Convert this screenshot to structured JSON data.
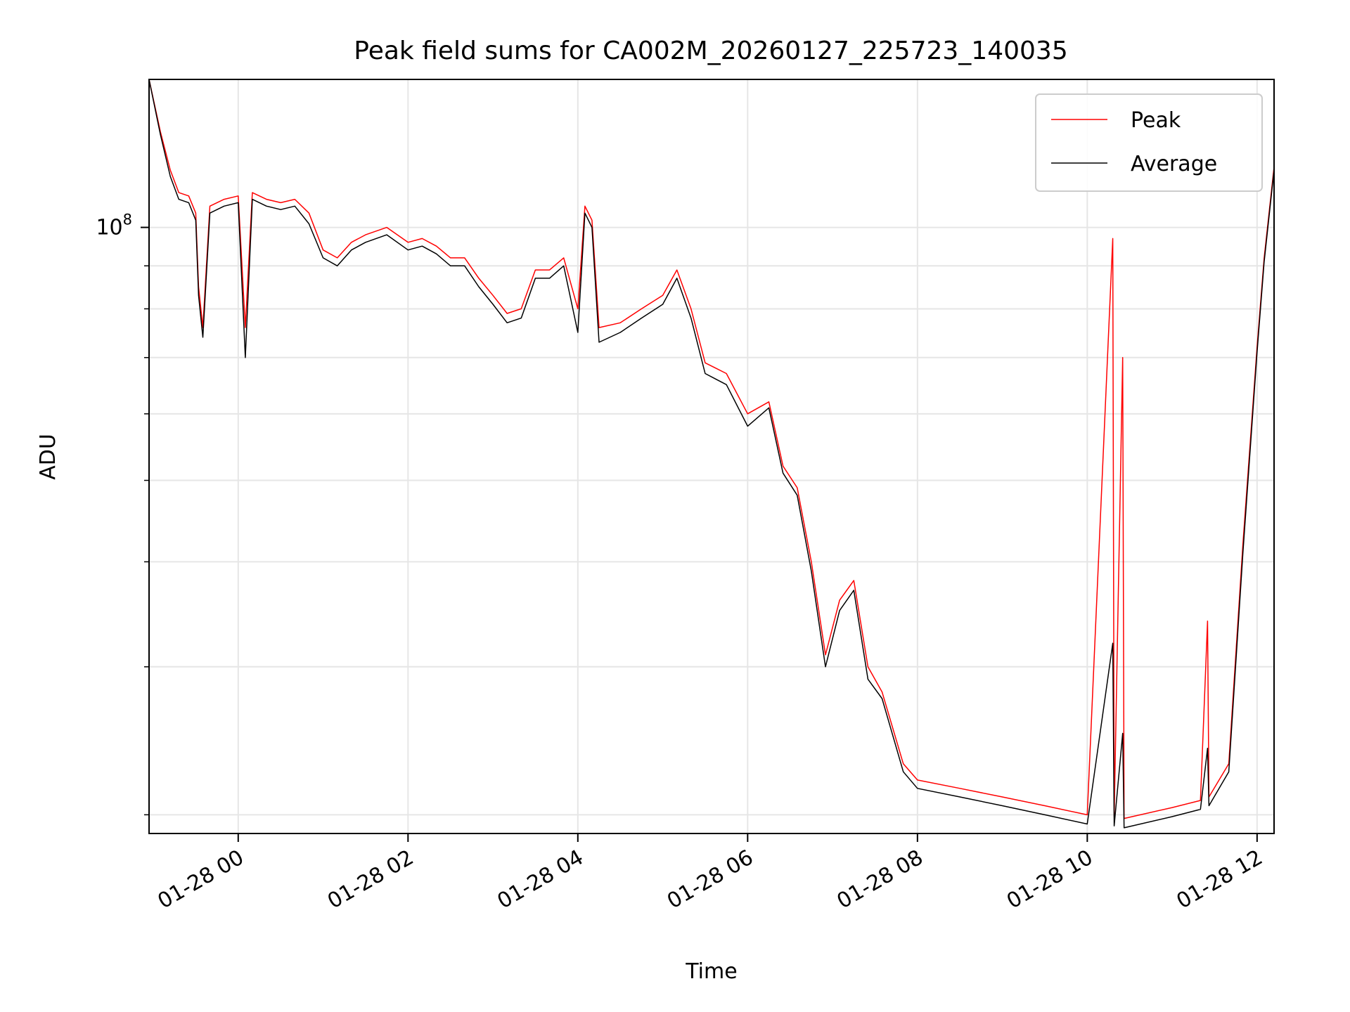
{
  "chart_data": {
    "type": "line",
    "title": "Peak field sums for CA002M_20260127_225723_140035",
    "xlabel": "Time",
    "ylabel": "ADU",
    "x_axis": {
      "type": "time",
      "range": [
        "2026-01-27 22:57",
        "2026-01-28 12:12"
      ],
      "ticks": [
        {
          "t": "2026-01-28 00:00",
          "label": "01-28 00"
        },
        {
          "t": "2026-01-28 02:00",
          "label": "01-28 02"
        },
        {
          "t": "2026-01-28 04:00",
          "label": "01-28 04"
        },
        {
          "t": "2026-01-28 06:00",
          "label": "01-28 06"
        },
        {
          "t": "2026-01-28 08:00",
          "label": "01-28 08"
        },
        {
          "t": "2026-01-28 10:00",
          "label": "01-28 10"
        },
        {
          "t": "2026-01-28 12:00",
          "label": "01-28 12"
        }
      ]
    },
    "y_axis": {
      "scale": "log",
      "range": [
        19000000,
        150000000
      ],
      "major_ticks": [
        {
          "value": 100000000,
          "label_base": "10",
          "label_exp": "8"
        }
      ],
      "minor_ticks": [
        20000000,
        30000000,
        40000000,
        50000000,
        60000000,
        70000000,
        80000000,
        90000000
      ]
    },
    "grid": true,
    "legend": {
      "placement": "top-right"
    },
    "series": [
      {
        "name": "Peak",
        "color": "#ff0000",
        "points": [
          [
            "2026-01-27 22:57",
            150000000
          ],
          [
            "2026-01-27 23:05",
            130000000
          ],
          [
            "2026-01-27 23:12",
            117000000
          ],
          [
            "2026-01-27 23:18",
            110000000
          ],
          [
            "2026-01-27 23:25",
            109000000
          ],
          [
            "2026-01-27 23:30",
            104000000
          ],
          [
            "2026-01-27 23:32",
            85000000
          ],
          [
            "2026-01-27 23:35",
            76000000
          ],
          [
            "2026-01-27 23:40",
            106000000
          ],
          [
            "2026-01-27 23:50",
            108000000
          ],
          [
            "2026-01-28 00:00",
            109000000
          ],
          [
            "2026-01-28 00:05",
            76000000
          ],
          [
            "2026-01-28 00:10",
            110000000
          ],
          [
            "2026-01-28 00:20",
            108000000
          ],
          [
            "2026-01-28 00:30",
            107000000
          ],
          [
            "2026-01-28 00:40",
            108000000
          ],
          [
            "2026-01-28 00:50",
            104000000
          ],
          [
            "2026-01-28 01:00",
            94000000
          ],
          [
            "2026-01-28 01:10",
            92000000
          ],
          [
            "2026-01-28 01:20",
            96000000
          ],
          [
            "2026-01-28 01:30",
            98000000
          ],
          [
            "2026-01-28 01:45",
            100000000
          ],
          [
            "2026-01-28 02:00",
            96000000
          ],
          [
            "2026-01-28 02:10",
            97000000
          ],
          [
            "2026-01-28 02:20",
            95000000
          ],
          [
            "2026-01-28 02:30",
            92000000
          ],
          [
            "2026-01-28 02:40",
            92000000
          ],
          [
            "2026-01-28 02:50",
            87000000
          ],
          [
            "2026-01-28 03:00",
            83000000
          ],
          [
            "2026-01-28 03:10",
            79000000
          ],
          [
            "2026-01-28 03:20",
            80000000
          ],
          [
            "2026-01-28 03:30",
            89000000
          ],
          [
            "2026-01-28 03:40",
            89000000
          ],
          [
            "2026-01-28 03:50",
            92000000
          ],
          [
            "2026-01-28 04:00",
            80000000
          ],
          [
            "2026-01-28 04:05",
            106000000
          ],
          [
            "2026-01-28 04:10",
            102000000
          ],
          [
            "2026-01-28 04:15",
            76000000
          ],
          [
            "2026-01-28 04:30",
            77000000
          ],
          [
            "2026-01-28 04:45",
            80000000
          ],
          [
            "2026-01-28 05:00",
            83000000
          ],
          [
            "2026-01-28 05:10",
            89000000
          ],
          [
            "2026-01-28 05:20",
            80000000
          ],
          [
            "2026-01-28 05:30",
            69000000
          ],
          [
            "2026-01-28 05:45",
            67000000
          ],
          [
            "2026-01-28 06:00",
            60000000
          ],
          [
            "2026-01-28 06:15",
            62000000
          ],
          [
            "2026-01-28 06:25",
            52000000
          ],
          [
            "2026-01-28 06:35",
            49000000
          ],
          [
            "2026-01-28 06:45",
            40000000
          ],
          [
            "2026-01-28 06:55",
            31000000
          ],
          [
            "2026-01-28 07:05",
            36000000
          ],
          [
            "2026-01-28 07:15",
            38000000
          ],
          [
            "2026-01-28 07:25",
            30000000
          ],
          [
            "2026-01-28 07:35",
            28000000
          ],
          [
            "2026-01-28 07:50",
            23000000
          ],
          [
            "2026-01-28 08:00",
            22000000
          ],
          [
            "2026-01-28 08:30",
            21500000
          ],
          [
            "2026-01-28 09:00",
            21000000
          ],
          [
            "2026-01-28 09:30",
            20500000
          ],
          [
            "2026-01-28 10:00",
            20000000
          ],
          [
            "2026-01-28 10:18",
            97000000
          ],
          [
            "2026-01-28 10:19",
            19900000
          ],
          [
            "2026-01-28 10:25",
            70000000
          ],
          [
            "2026-01-28 10:26",
            19800000
          ],
          [
            "2026-01-28 11:00",
            20400000
          ],
          [
            "2026-01-28 11:20",
            20800000
          ],
          [
            "2026-01-28 11:25",
            34000000
          ],
          [
            "2026-01-28 11:26",
            21000000
          ],
          [
            "2026-01-28 11:40",
            23000000
          ],
          [
            "2026-01-28 11:50",
            42000000
          ],
          [
            "2026-01-28 12:00",
            72000000
          ],
          [
            "2026-01-28 12:05",
            92000000
          ],
          [
            "2026-01-28 12:12",
            118000000
          ]
        ]
      },
      {
        "name": "Average",
        "color": "#000000",
        "points": [
          [
            "2026-01-27 22:57",
            150000000
          ],
          [
            "2026-01-27 23:05",
            129000000
          ],
          [
            "2026-01-27 23:12",
            115000000
          ],
          [
            "2026-01-27 23:18",
            108000000
          ],
          [
            "2026-01-27 23:25",
            107000000
          ],
          [
            "2026-01-27 23:30",
            102000000
          ],
          [
            "2026-01-27 23:32",
            83000000
          ],
          [
            "2026-01-27 23:35",
            74000000
          ],
          [
            "2026-01-27 23:40",
            104000000
          ],
          [
            "2026-01-27 23:50",
            106000000
          ],
          [
            "2026-01-28 00:00",
            107000000
          ],
          [
            "2026-01-28 00:05",
            70000000
          ],
          [
            "2026-01-28 00:10",
            108000000
          ],
          [
            "2026-01-28 00:20",
            106000000
          ],
          [
            "2026-01-28 00:30",
            105000000
          ],
          [
            "2026-01-28 00:40",
            106000000
          ],
          [
            "2026-01-28 00:50",
            101000000
          ],
          [
            "2026-01-28 01:00",
            92000000
          ],
          [
            "2026-01-28 01:10",
            90000000
          ],
          [
            "2026-01-28 01:20",
            94000000
          ],
          [
            "2026-01-28 01:30",
            96000000
          ],
          [
            "2026-01-28 01:45",
            98000000
          ],
          [
            "2026-01-28 02:00",
            94000000
          ],
          [
            "2026-01-28 02:10",
            95000000
          ],
          [
            "2026-01-28 02:20",
            93000000
          ],
          [
            "2026-01-28 02:30",
            90000000
          ],
          [
            "2026-01-28 02:40",
            90000000
          ],
          [
            "2026-01-28 02:50",
            85000000
          ],
          [
            "2026-01-28 03:00",
            81000000
          ],
          [
            "2026-01-28 03:10",
            77000000
          ],
          [
            "2026-01-28 03:20",
            78000000
          ],
          [
            "2026-01-28 03:30",
            87000000
          ],
          [
            "2026-01-28 03:40",
            87000000
          ],
          [
            "2026-01-28 03:50",
            90000000
          ],
          [
            "2026-01-28 04:00",
            75000000
          ],
          [
            "2026-01-28 04:05",
            104000000
          ],
          [
            "2026-01-28 04:10",
            100000000
          ],
          [
            "2026-01-28 04:15",
            73000000
          ],
          [
            "2026-01-28 04:30",
            75000000
          ],
          [
            "2026-01-28 04:45",
            78000000
          ],
          [
            "2026-01-28 05:00",
            81000000
          ],
          [
            "2026-01-28 05:10",
            87000000
          ],
          [
            "2026-01-28 05:20",
            78000000
          ],
          [
            "2026-01-28 05:30",
            67000000
          ],
          [
            "2026-01-28 05:45",
            65000000
          ],
          [
            "2026-01-28 06:00",
            58000000
          ],
          [
            "2026-01-28 06:15",
            61000000
          ],
          [
            "2026-01-28 06:25",
            51000000
          ],
          [
            "2026-01-28 06:35",
            48000000
          ],
          [
            "2026-01-28 06:45",
            39000000
          ],
          [
            "2026-01-28 06:55",
            30000000
          ],
          [
            "2026-01-28 07:05",
            35000000
          ],
          [
            "2026-01-28 07:15",
            37000000
          ],
          [
            "2026-01-28 07:25",
            29000000
          ],
          [
            "2026-01-28 07:35",
            27500000
          ],
          [
            "2026-01-28 07:50",
            22500000
          ],
          [
            "2026-01-28 08:00",
            21500000
          ],
          [
            "2026-01-28 08:30",
            21000000
          ],
          [
            "2026-01-28 09:00",
            20500000
          ],
          [
            "2026-01-28 09:30",
            20000000
          ],
          [
            "2026-01-28 10:00",
            19500000
          ],
          [
            "2026-01-28 10:18",
            32000000
          ],
          [
            "2026-01-28 10:19",
            19400000
          ],
          [
            "2026-01-28 10:25",
            25000000
          ],
          [
            "2026-01-28 10:26",
            19300000
          ],
          [
            "2026-01-28 11:00",
            19900000
          ],
          [
            "2026-01-28 11:20",
            20300000
          ],
          [
            "2026-01-28 11:25",
            24000000
          ],
          [
            "2026-01-28 11:26",
            20500000
          ],
          [
            "2026-01-28 11:40",
            22500000
          ],
          [
            "2026-01-28 11:50",
            41000000
          ],
          [
            "2026-01-28 12:00",
            71000000
          ],
          [
            "2026-01-28 12:05",
            91000000
          ],
          [
            "2026-01-28 12:12",
            117000000
          ]
        ]
      }
    ]
  }
}
